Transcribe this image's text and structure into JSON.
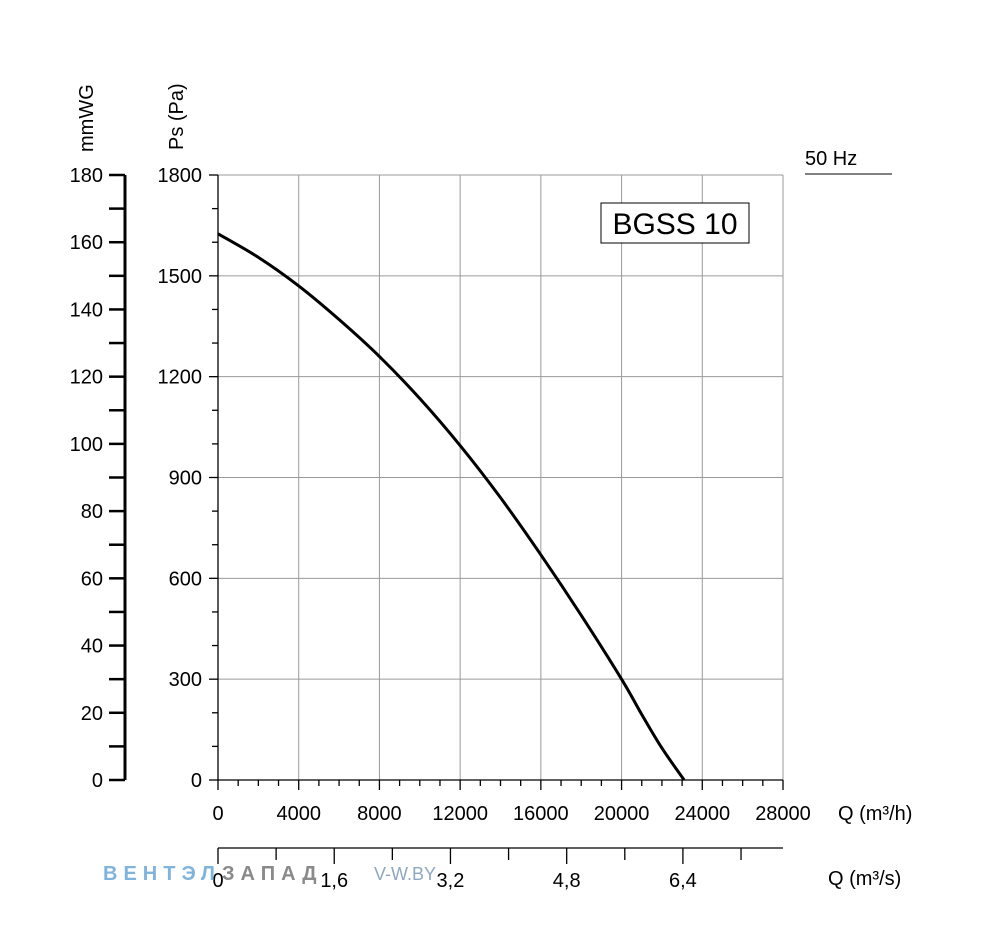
{
  "chart_data": {
    "type": "line",
    "model_label": "BGSS 10",
    "frequency_label": "50 Hz",
    "ylabel_pa": "Ps (Pa)",
    "ylabel_mmwg": "mmWG",
    "xlabel_m3h": "Q (m³/h)",
    "xlabel_m3s": "Q (m³/s)",
    "xlim": [
      0,
      28000
    ],
    "ylim": [
      0,
      1800
    ],
    "mmwg_lim": [
      0,
      180
    ],
    "m3s_lim": [
      0,
      7.7778
    ],
    "grid": true,
    "x_ticks": [
      0,
      4000,
      8000,
      12000,
      16000,
      20000,
      24000,
      28000
    ],
    "x_tick_labels": [
      "0",
      "4000",
      "8000",
      "12000",
      "16000",
      "20000",
      "24000",
      "28000"
    ],
    "y_ticks": [
      0,
      300,
      600,
      900,
      1200,
      1500,
      1800
    ],
    "y_tick_labels": [
      "0",
      "300",
      "600",
      "900",
      "1200",
      "1500",
      "1800"
    ],
    "mmwg_ticks": [
      0,
      20,
      40,
      60,
      80,
      100,
      120,
      140,
      160,
      180
    ],
    "mmwg_tick_labels": [
      "0",
      "20",
      "40",
      "60",
      "80",
      "100",
      "120",
      "140",
      "160",
      "180"
    ],
    "m3s_ticks": [
      0,
      1.6,
      3.2,
      4.8,
      6.4
    ],
    "m3s_tick_labels": [
      "0",
      "1,6",
      "3,2",
      "4,8",
      "6,4"
    ],
    "series": [
      {
        "x": [
          0,
          2000,
          4000,
          6000,
          8000,
          10000,
          12000,
          14000,
          16000,
          18000,
          20000,
          21000,
          22000,
          23100
        ],
        "y": [
          1625,
          1555,
          1470,
          1370,
          1260,
          1135,
          995,
          840,
          670,
          490,
          300,
          195,
          95,
          0
        ]
      }
    ]
  },
  "watermark": {
    "part1": "ВЕНТЭЛ",
    "part2": "ЗАПАД",
    "site": "V-W.BY"
  }
}
